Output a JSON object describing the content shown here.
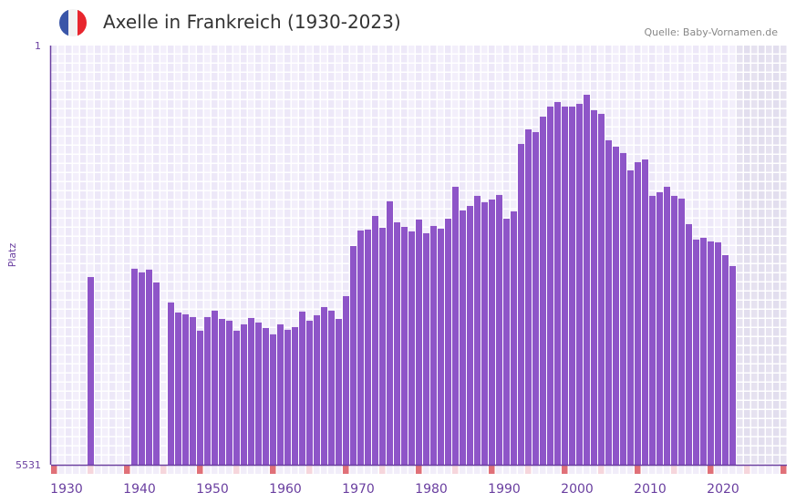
{
  "header": {
    "title": "Axelle in Frankreich (1930-2023)",
    "source": "Quelle: Baby-Vornamen.de",
    "flag_icon": "france-flag-icon"
  },
  "colors": {
    "bar": "#8e55c8",
    "axis": "#6a3fa0",
    "marker_red": "#e07078",
    "marker_pink": "#f6d6dc"
  },
  "chart_data": {
    "type": "bar",
    "title": "Axelle in Frankreich (1930-2023)",
    "xlabel": "",
    "ylabel": "Platz",
    "ylim": [
      5531,
      1
    ],
    "y_ticks": [
      "1",
      "5531"
    ],
    "x_ticks": [
      "1930",
      "1940",
      "1950",
      "1960",
      "1970",
      "1980",
      "1990",
      "2000",
      "2010",
      "2020"
    ],
    "x_range": [
      1929,
      2029
    ],
    "years": [
      1934,
      1940,
      1941,
      1942,
      1943,
      1945,
      1946,
      1947,
      1948,
      1949,
      1950,
      1951,
      1952,
      1953,
      1954,
      1955,
      1956,
      1957,
      1958,
      1959,
      1960,
      1961,
      1962,
      1963,
      1964,
      1965,
      1966,
      1967,
      1968,
      1969,
      1970,
      1971,
      1972,
      1973,
      1974,
      1975,
      1976,
      1977,
      1978,
      1979,
      1980,
      1981,
      1982,
      1983,
      1984,
      1985,
      1986,
      1987,
      1988,
      1989,
      1990,
      1991,
      1992,
      1993,
      1994,
      1995,
      1996,
      1997,
      1998,
      1999,
      2000,
      2001,
      2002,
      2003,
      2004,
      2005,
      2006,
      2007,
      2008,
      2009,
      2010,
      2011,
      2012,
      2013,
      2014,
      2015,
      2016,
      2017,
      2018,
      2019,
      2020,
      2021,
      2022
    ],
    "values": [
      3055,
      2945,
      2993,
      2957,
      3126,
      3391,
      3523,
      3547,
      3583,
      3763,
      3583,
      3499,
      3607,
      3631,
      3763,
      3679,
      3595,
      3655,
      3727,
      3811,
      3679,
      3751,
      3715,
      3511,
      3631,
      3559,
      3451,
      3499,
      3607,
      3307,
      2646,
      2441,
      2429,
      2249,
      2405,
      2056,
      2333,
      2393,
      2453,
      2297,
      2477,
      2381,
      2417,
      2285,
      1864,
      2177,
      2117,
      1984,
      2068,
      2032,
      1972,
      2285,
      2189,
      1299,
      1107,
      1143,
      939,
      806,
      746,
      806,
      806,
      770,
      650,
      854,
      902,
      1251,
      1335,
      1419,
      1648,
      1540,
      1504,
      1984,
      1936,
      1864,
      1984,
      2020,
      2357,
      2561,
      2537,
      2585,
      2597,
      2766,
      2910
    ],
    "future_from": 2023,
    "grid": true
  }
}
